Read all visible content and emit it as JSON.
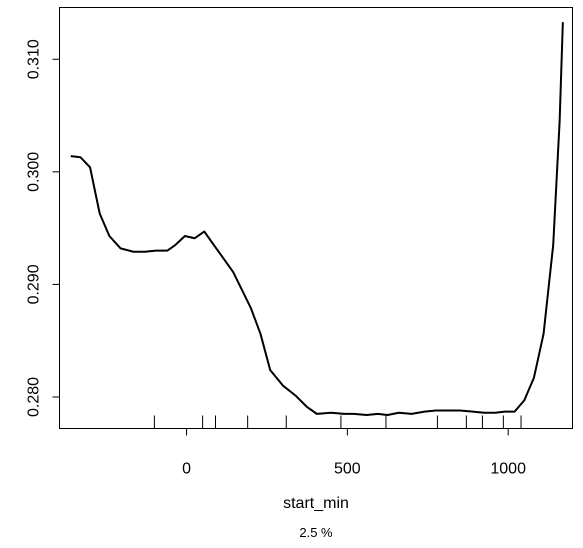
{
  "chart_data": {
    "type": "line",
    "title": "",
    "xlabel": "start_min",
    "ylabel": "",
    "subtitle": "2.5 %",
    "xlim": [
      -395,
      1200
    ],
    "ylim": [
      0.2772,
      0.3146
    ],
    "xticks": [
      0,
      500,
      1000
    ],
    "yticks": [
      0.28,
      0.29,
      0.3,
      0.31
    ],
    "ytick_labels": [
      "0.280",
      "0.290",
      "0.300",
      "0.310"
    ],
    "grid": false,
    "legend": "none",
    "line_color": "#000000",
    "series": [
      {
        "x": [
          -360,
          -330,
          -300,
          -270,
          -240,
          -205,
          -165,
          -130,
          -95,
          -60,
          -35,
          -5,
          25,
          55,
          100,
          145,
          200,
          230,
          260,
          300,
          340,
          375,
          405,
          450,
          490,
          520,
          560,
          595,
          625,
          660,
          700,
          740,
          775,
          815,
          850,
          890,
          925,
          960,
          990,
          1020,
          1050,
          1080,
          1110,
          1140,
          1160,
          1170
        ],
        "y": [
          0.3014,
          0.3013,
          0.3004,
          0.2963,
          0.2943,
          0.2932,
          0.2929,
          0.2929,
          0.293,
          0.293,
          0.2935,
          0.2943,
          0.2941,
          0.2947,
          0.2929,
          0.2911,
          0.2879,
          0.2856,
          0.2824,
          0.281,
          0.2801,
          0.2791,
          0.2785,
          0.2786,
          0.2785,
          0.2785,
          0.2784,
          0.2785,
          0.2784,
          0.2786,
          0.2785,
          0.2787,
          0.2788,
          0.2788,
          0.2788,
          0.2787,
          0.2786,
          0.2786,
          0.2787,
          0.2787,
          0.2797,
          0.2817,
          0.2856,
          0.2935,
          0.3045,
          0.3133
        ]
      }
    ],
    "rug": [
      -100,
      50,
      90,
      190,
      310,
      480,
      620,
      780,
      870,
      920,
      985,
      1040
    ]
  }
}
